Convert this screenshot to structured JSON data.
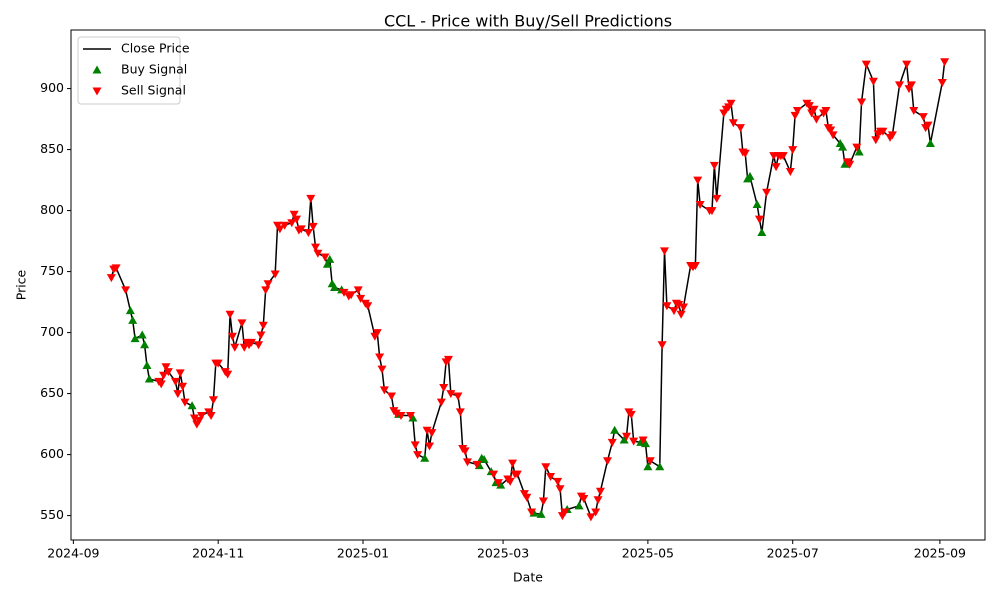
{
  "chart_data": {
    "type": "line",
    "title": "CCL - Price with Buy/Sell Predictions",
    "x_label": "Date",
    "y_label": "Price",
    "xlim": [
      "2024-08-31",
      "2025-09-20"
    ],
    "xticks": [
      {
        "value": "2024-09-01",
        "label": "2024-09"
      },
      {
        "value": "2024-11-01",
        "label": "2024-11"
      },
      {
        "value": "2025-01-01",
        "label": "2025-01"
      },
      {
        "value": "2025-03-01",
        "label": "2025-03"
      },
      {
        "value": "2025-05-01",
        "label": "2025-05"
      },
      {
        "value": "2025-07-01",
        "label": "2025-07"
      },
      {
        "value": "2025-09-01",
        "label": "2025-09"
      }
    ],
    "ylim": [
      530,
      948
    ],
    "yticks": [
      550,
      600,
      650,
      700,
      750,
      800,
      850,
      900
    ],
    "grid": false,
    "legend": "upper left",
    "series": [
      {
        "name": "Close Price",
        "color": "#000000",
        "marker": "line",
        "x": [
          "2024-09-17",
          "2024-09-18",
          "2024-09-19",
          "2024-09-23",
          "2024-09-25",
          "2024-09-26",
          "2024-09-27",
          "2024-09-30",
          "2024-10-01",
          "2024-10-02",
          "2024-10-03",
          "2024-10-07",
          "2024-10-08",
          "2024-10-09",
          "2024-10-10",
          "2024-10-11",
          "2024-10-14",
          "2024-10-15",
          "2024-10-16",
          "2024-10-17",
          "2024-10-18",
          "2024-10-21",
          "2024-10-22",
          "2024-10-23",
          "2024-10-24",
          "2024-10-25",
          "2024-10-28",
          "2024-10-29",
          "2024-10-30",
          "2024-10-31",
          "2024-11-01",
          "2024-11-04",
          "2024-11-05",
          "2024-11-06",
          "2024-11-07",
          "2024-11-08",
          "2024-11-11",
          "2024-11-12",
          "2024-11-13",
          "2024-11-14",
          "2024-11-15",
          "2024-11-18",
          "2024-11-19",
          "2024-11-20",
          "2024-11-21",
          "2024-11-22",
          "2024-11-25",
          "2024-11-26",
          "2024-11-27",
          "2024-11-29",
          "2024-12-02",
          "2024-12-03",
          "2024-12-04",
          "2024-12-05",
          "2024-12-06",
          "2024-12-09",
          "2024-12-10",
          "2024-12-11",
          "2024-12-12",
          "2024-12-13",
          "2024-12-16",
          "2024-12-17",
          "2024-12-18",
          "2024-12-19",
          "2024-12-20",
          "2024-12-23",
          "2024-12-24",
          "2024-12-26",
          "2024-12-27",
          "2024-12-30",
          "2024-12-31",
          "2025-01-02",
          "2025-01-03",
          "2025-01-06",
          "2025-01-07",
          "2025-01-08",
          "2025-01-09",
          "2025-01-10",
          "2025-01-13",
          "2025-01-14",
          "2025-01-15",
          "2025-01-16",
          "2025-01-17",
          "2025-01-21",
          "2025-01-22",
          "2025-01-23",
          "2025-01-24",
          "2025-01-27",
          "2025-01-28",
          "2025-01-29",
          "2025-01-30",
          "2025-02-03",
          "2025-02-04",
          "2025-02-05",
          "2025-02-06",
          "2025-02-07",
          "2025-02-10",
          "2025-02-11",
          "2025-02-12",
          "2025-02-13",
          "2025-02-14",
          "2025-02-18",
          "2025-02-19",
          "2025-02-20",
          "2025-02-21",
          "2025-02-24",
          "2025-02-25",
          "2025-02-26",
          "2025-02-27",
          "2025-02-28",
          "2025-03-03",
          "2025-03-04",
          "2025-03-05",
          "2025-03-06",
          "2025-03-07",
          "2025-03-10",
          "2025-03-11",
          "2025-03-13",
          "2025-03-14",
          "2025-03-17",
          "2025-03-18",
          "2025-03-19",
          "2025-03-21",
          "2025-03-24",
          "2025-03-25",
          "2025-03-26",
          "2025-03-27",
          "2025-03-28",
          "2025-04-02",
          "2025-04-03",
          "2025-04-04",
          "2025-04-07",
          "2025-04-09",
          "2025-04-10",
          "2025-04-11",
          "2025-04-14",
          "2025-04-16",
          "2025-04-17",
          "2025-04-21",
          "2025-04-22",
          "2025-04-23",
          "2025-04-24",
          "2025-04-25",
          "2025-04-28",
          "2025-04-29",
          "2025-04-30",
          "2025-05-01",
          "2025-05-02",
          "2025-05-06",
          "2025-05-07",
          "2025-05-08",
          "2025-05-09",
          "2025-05-12",
          "2025-05-13",
          "2025-05-14",
          "2025-05-15",
          "2025-05-16",
          "2025-05-19",
          "2025-05-20",
          "2025-05-21",
          "2025-05-22",
          "2025-05-23",
          "2025-05-27",
          "2025-05-28",
          "2025-05-29",
          "2025-05-30",
          "2025-06-02",
          "2025-06-03",
          "2025-06-04",
          "2025-06-05",
          "2025-06-06",
          "2025-06-09",
          "2025-06-10",
          "2025-06-11",
          "2025-06-12",
          "2025-06-13",
          "2025-06-16",
          "2025-06-17",
          "2025-06-18",
          "2025-06-20",
          "2025-06-23",
          "2025-06-24",
          "2025-06-25",
          "2025-06-26",
          "2025-06-27",
          "2025-06-30",
          "2025-07-01",
          "2025-07-02",
          "2025-07-03",
          "2025-07-07",
          "2025-07-08",
          "2025-07-09",
          "2025-07-10",
          "2025-07-11",
          "2025-07-14",
          "2025-07-15",
          "2025-07-16",
          "2025-07-17",
          "2025-07-18",
          "2025-07-21",
          "2025-07-22",
          "2025-07-23",
          "2025-07-24",
          "2025-07-25",
          "2025-07-28",
          "2025-07-29",
          "2025-07-30",
          "2025-08-01",
          "2025-08-04",
          "2025-08-05",
          "2025-08-06",
          "2025-08-07",
          "2025-08-08",
          "2025-08-11",
          "2025-08-12",
          "2025-08-15",
          "2025-08-18",
          "2025-08-19",
          "2025-08-20",
          "2025-08-21",
          "2025-08-25",
          "2025-08-26",
          "2025-08-27",
          "2025-08-28",
          "2025-09-02",
          "2025-09-03"
        ],
        "values": [
          745,
          752,
          753,
          735,
          718,
          710,
          695,
          698,
          690,
          673,
          662,
          660,
          658,
          665,
          672,
          668,
          660,
          650,
          667,
          656,
          643,
          640,
          630,
          625,
          628,
          632,
          635,
          632,
          645,
          675,
          675,
          668,
          666,
          715,
          697,
          688,
          708,
          688,
          692,
          690,
          692,
          690,
          698,
          706,
          735,
          740,
          748,
          788,
          785,
          788,
          790,
          797,
          793,
          784,
          785,
          782,
          810,
          787,
          770,
          765,
          762,
          756,
          760,
          740,
          737,
          735,
          733,
          730,
          731,
          735,
          728,
          724,
          722,
          697,
          700,
          680,
          670,
          653,
          648,
          636,
          634,
          633,
          632,
          632,
          630,
          608,
          600,
          597,
          620,
          607,
          618,
          643,
          655,
          676,
          678,
          650,
          648,
          635,
          605,
          603,
          594,
          592,
          591,
          597,
          596,
          586,
          584,
          577,
          577,
          575,
          580,
          578,
          593,
          584,
          584,
          568,
          565,
          553,
          552,
          551,
          562,
          590,
          582,
          578,
          572,
          550,
          553,
          555,
          558,
          566,
          564,
          549,
          553,
          563,
          570,
          595,
          610,
          620,
          612,
          615,
          635,
          633,
          611,
          610,
          612,
          609,
          590,
          595,
          590,
          690,
          767,
          722,
          718,
          724,
          723,
          715,
          721,
          755,
          754,
          755,
          825,
          805,
          800,
          800,
          837,
          810,
          880,
          883,
          885,
          888,
          872,
          868,
          848,
          847,
          826,
          828,
          805,
          793,
          782,
          815,
          845,
          836,
          845,
          845,
          845,
          832,
          850,
          878,
          882,
          888,
          886,
          880,
          883,
          875,
          880,
          882,
          868,
          866,
          862,
          855,
          852,
          838,
          840,
          838,
          852,
          848,
          889,
          920,
          906,
          858,
          863,
          865,
          865,
          860,
          862,
          903,
          920,
          900,
          903,
          882,
          877,
          868,
          870,
          855,
          905,
          922
        ]
      },
      {
        "name": "Buy Signal",
        "color": "#008000",
        "marker": "^",
        "x": [
          "2024-09-25",
          "2024-09-26",
          "2024-09-27",
          "2024-09-30",
          "2024-10-01",
          "2024-10-02",
          "2024-10-03",
          "2024-10-21",
          "2024-12-17",
          "2024-12-18",
          "2024-12-19",
          "2024-12-20",
          "2024-12-23",
          "2025-01-16",
          "2025-01-22",
          "2025-01-27",
          "2025-02-19",
          "2025-02-20",
          "2025-02-21",
          "2025-02-24",
          "2025-02-26",
          "2025-02-28",
          "2025-03-14",
          "2025-03-17",
          "2025-03-28",
          "2025-04-02",
          "2025-04-17",
          "2025-04-21",
          "2025-04-28",
          "2025-04-30",
          "2025-05-01",
          "2025-05-06",
          "2025-06-12",
          "2025-06-13",
          "2025-06-16",
          "2025-06-18",
          "2025-07-21",
          "2025-07-22",
          "2025-07-23",
          "2025-07-29",
          "2025-08-28"
        ],
        "values": [
          718,
          710,
          695,
          698,
          690,
          673,
          662,
          640,
          756,
          760,
          740,
          737,
          735,
          633,
          630,
          597,
          591,
          597,
          596,
          586,
          577,
          575,
          552,
          551,
          555,
          558,
          620,
          612,
          610,
          609,
          590,
          590,
          826,
          828,
          805,
          782,
          855,
          852,
          838,
          848,
          855
        ]
      },
      {
        "name": "Sell Signal",
        "color": "#ff0000",
        "marker": "v",
        "x": [
          "2024-09-17",
          "2024-09-18",
          "2024-09-19",
          "2024-09-23",
          "2024-10-07",
          "2024-10-08",
          "2024-10-09",
          "2024-10-10",
          "2024-10-11",
          "2024-10-14",
          "2024-10-15",
          "2024-10-16",
          "2024-10-17",
          "2024-10-18",
          "2024-10-22",
          "2024-10-23",
          "2024-10-24",
          "2024-10-25",
          "2024-10-28",
          "2024-10-29",
          "2024-10-30",
          "2024-10-31",
          "2024-11-01",
          "2024-11-04",
          "2024-11-05",
          "2024-11-06",
          "2024-11-07",
          "2024-11-08",
          "2024-11-11",
          "2024-11-12",
          "2024-11-13",
          "2024-11-14",
          "2024-11-15",
          "2024-11-18",
          "2024-11-19",
          "2024-11-20",
          "2024-11-21",
          "2024-11-22",
          "2024-11-25",
          "2024-11-26",
          "2024-11-27",
          "2024-11-29",
          "2024-12-02",
          "2024-12-03",
          "2024-12-04",
          "2024-12-05",
          "2024-12-06",
          "2024-12-09",
          "2024-12-10",
          "2024-12-11",
          "2024-12-12",
          "2024-12-13",
          "2024-12-16",
          "2024-12-24",
          "2024-12-26",
          "2024-12-27",
          "2024-12-30",
          "2024-12-31",
          "2025-01-02",
          "2025-01-03",
          "2025-01-06",
          "2025-01-07",
          "2025-01-08",
          "2025-01-09",
          "2025-01-10",
          "2025-01-13",
          "2025-01-14",
          "2025-01-15",
          "2025-01-17",
          "2025-01-21",
          "2025-01-23",
          "2025-01-24",
          "2025-01-28",
          "2025-01-29",
          "2025-01-30",
          "2025-02-03",
          "2025-02-04",
          "2025-02-05",
          "2025-02-06",
          "2025-02-07",
          "2025-02-10",
          "2025-02-11",
          "2025-02-12",
          "2025-02-13",
          "2025-02-14",
          "2025-02-18",
          "2025-02-25",
          "2025-02-27",
          "2025-03-03",
          "2025-03-04",
          "2025-03-05",
          "2025-03-06",
          "2025-03-07",
          "2025-03-10",
          "2025-03-11",
          "2025-03-13",
          "2025-03-18",
          "2025-03-19",
          "2025-03-21",
          "2025-03-24",
          "2025-03-25",
          "2025-03-26",
          "2025-03-27",
          "2025-04-03",
          "2025-04-04",
          "2025-04-07",
          "2025-04-09",
          "2025-04-10",
          "2025-04-11",
          "2025-04-14",
          "2025-04-16",
          "2025-04-22",
          "2025-04-23",
          "2025-04-24",
          "2025-04-25",
          "2025-04-29",
          "2025-05-02",
          "2025-05-07",
          "2025-05-08",
          "2025-05-09",
          "2025-05-12",
          "2025-05-13",
          "2025-05-14",
          "2025-05-15",
          "2025-05-16",
          "2025-05-19",
          "2025-05-20",
          "2025-05-21",
          "2025-05-22",
          "2025-05-23",
          "2025-05-27",
          "2025-05-28",
          "2025-05-29",
          "2025-05-30",
          "2025-06-02",
          "2025-06-03",
          "2025-06-04",
          "2025-06-05",
          "2025-06-06",
          "2025-06-09",
          "2025-06-10",
          "2025-06-11",
          "2025-06-17",
          "2025-06-20",
          "2025-06-23",
          "2025-06-24",
          "2025-06-25",
          "2025-06-26",
          "2025-06-27",
          "2025-06-30",
          "2025-07-01",
          "2025-07-02",
          "2025-07-03",
          "2025-07-07",
          "2025-07-08",
          "2025-07-09",
          "2025-07-10",
          "2025-07-11",
          "2025-07-14",
          "2025-07-15",
          "2025-07-16",
          "2025-07-17",
          "2025-07-18",
          "2025-07-24",
          "2025-07-25",
          "2025-07-28",
          "2025-07-30",
          "2025-08-01",
          "2025-08-04",
          "2025-08-05",
          "2025-08-06",
          "2025-08-07",
          "2025-08-08",
          "2025-08-11",
          "2025-08-12",
          "2025-08-15",
          "2025-08-18",
          "2025-08-19",
          "2025-08-20",
          "2025-08-21",
          "2025-08-25",
          "2025-08-26",
          "2025-08-27",
          "2025-09-02",
          "2025-09-03"
        ],
        "values": [
          745,
          752,
          753,
          735,
          660,
          658,
          665,
          672,
          668,
          660,
          650,
          667,
          656,
          643,
          630,
          625,
          628,
          632,
          635,
          632,
          645,
          675,
          675,
          668,
          666,
          715,
          697,
          688,
          708,
          688,
          692,
          690,
          692,
          690,
          698,
          706,
          735,
          740,
          748,
          788,
          785,
          788,
          790,
          797,
          793,
          784,
          785,
          782,
          810,
          787,
          770,
          765,
          762,
          733,
          730,
          731,
          735,
          728,
          724,
          722,
          697,
          700,
          680,
          670,
          653,
          648,
          636,
          634,
          632,
          632,
          608,
          600,
          620,
          607,
          618,
          643,
          655,
          676,
          678,
          650,
          648,
          635,
          605,
          603,
          594,
          592,
          584,
          577,
          580,
          578,
          593,
          584,
          584,
          568,
          565,
          553,
          562,
          590,
          582,
          578,
          572,
          550,
          553,
          566,
          564,
          549,
          553,
          563,
          570,
          595,
          610,
          615,
          635,
          633,
          611,
          612,
          595,
          690,
          767,
          722,
          718,
          724,
          723,
          715,
          721,
          755,
          754,
          755,
          825,
          805,
          800,
          800,
          837,
          810,
          880,
          883,
          885,
          888,
          872,
          868,
          848,
          847,
          793,
          815,
          845,
          836,
          845,
          845,
          845,
          832,
          850,
          878,
          882,
          888,
          886,
          880,
          883,
          875,
          880,
          882,
          868,
          866,
          862,
          840,
          838,
          852,
          889,
          920,
          906,
          858,
          863,
          865,
          865,
          860,
          862,
          903,
          920,
          900,
          903,
          882,
          877,
          868,
          870,
          905,
          922
        ]
      }
    ]
  }
}
